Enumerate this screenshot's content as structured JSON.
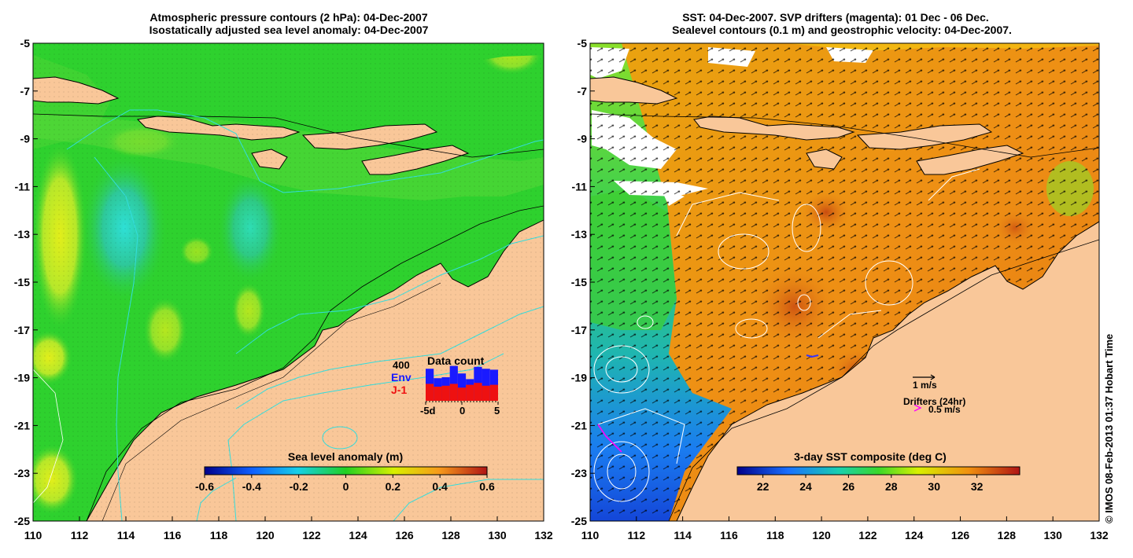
{
  "left_panel": {
    "title_line1": "Atmospheric pressure contours (2 hPa): 04-Dec-2007",
    "title_line2": "Isostatically adjusted sea level anomaly: 04-Dec-2007",
    "colorbar_label": "Sea level anomaly (m)",
    "colorbar_ticks": [
      "-0.6",
      "-0.4",
      "-0.2",
      "0",
      "0.2",
      "0.4",
      "0.6"
    ],
    "colorbar_range": [
      -0.6,
      0.6
    ],
    "inset": {
      "title": "Data count",
      "max_label": "400",
      "env_label": "Env",
      "j1_label": "J-1",
      "x_labels": [
        "-5d",
        "0",
        "5"
      ],
      "env_counts": [
        340,
        240,
        250,
        370,
        290,
        230,
        360,
        340,
        330
      ],
      "j1_counts": [
        180,
        150,
        160,
        180,
        140,
        170,
        190,
        160,
        170
      ],
      "colors": {
        "env": "#1a1aff",
        "j1": "#ee1111"
      }
    }
  },
  "right_panel": {
    "title_line1": "SST: 04-Dec-2007. SVP drifters (magenta): 01 Dec - 06 Dec.",
    "title_line2": "Sealevel contours (0.1 m) and geostrophic velocity: 04-Dec-2007.",
    "colorbar_label": "3-day SST composite (deg C)",
    "colorbar_ticks": [
      "22",
      "24",
      "26",
      "28",
      "30",
      "32"
    ],
    "colorbar_range": [
      20.8,
      34.0
    ],
    "velocity_legend": "1 m/s",
    "drifters_legend": "Drifters (24hr)",
    "drifters_speed": "0.5 m/s",
    "drifter_color": "#ff00ff"
  },
  "axes": {
    "x_ticks": [
      "110",
      "112",
      "114",
      "116",
      "118",
      "120",
      "122",
      "124",
      "126",
      "128",
      "130",
      "132"
    ],
    "y_ticks": [
      "-5",
      "-7",
      "-9",
      "-11",
      "-13",
      "-15",
      "-17",
      "-19",
      "-21",
      "-23",
      "-25"
    ],
    "lon_range": [
      110,
      132
    ],
    "lat_range": [
      -25,
      -5
    ]
  },
  "credit": "© IMOS 08-Feb-2013 01:37 Hobart Time",
  "colors": {
    "land": "#f9c799",
    "ocean_green": "#2ed12e",
    "sst_orange": "#f29a18",
    "contour_cyan": "#33dddd"
  }
}
